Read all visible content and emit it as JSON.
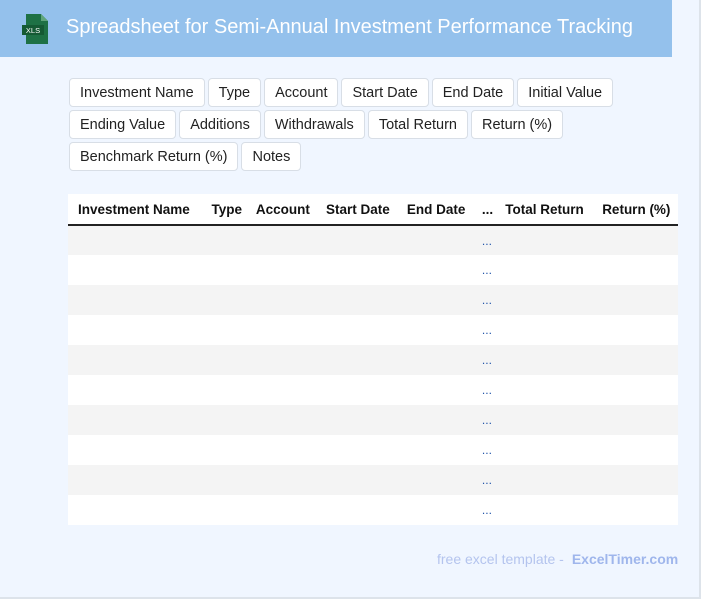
{
  "header": {
    "title": "Spreadsheet for Semi-Annual Investment Performance Tracking",
    "icon": "xls-file-icon",
    "icon_text": "XLS"
  },
  "fields": [
    "Investment Name",
    "Type",
    "Account",
    "Start Date",
    "End Date",
    "Initial Value",
    "Ending Value",
    "Additions",
    "Withdrawals",
    "Total Return",
    "Return (%)",
    "Benchmark Return (%)",
    "Notes"
  ],
  "table": {
    "columns": [
      "Investment Name",
      "Type",
      "Account",
      "Start Date",
      "End Date",
      "...",
      "Total Return",
      "Return (%)"
    ],
    "rows": [
      [
        "",
        "",
        "",
        "",
        "",
        "...",
        "",
        ""
      ],
      [
        "",
        "",
        "",
        "",
        "",
        "...",
        "",
        ""
      ],
      [
        "",
        "",
        "",
        "",
        "",
        "...",
        "",
        ""
      ],
      [
        "",
        "",
        "",
        "",
        "",
        "...",
        "",
        ""
      ],
      [
        "",
        "",
        "",
        "",
        "",
        "...",
        "",
        ""
      ],
      [
        "",
        "",
        "",
        "",
        "",
        "...",
        "",
        ""
      ],
      [
        "",
        "",
        "",
        "",
        "",
        "...",
        "",
        ""
      ],
      [
        "",
        "",
        "",
        "",
        "",
        "...",
        "",
        ""
      ],
      [
        "",
        "",
        "",
        "",
        "",
        "...",
        "",
        ""
      ],
      [
        "",
        "",
        "",
        "",
        "",
        "...",
        "",
        ""
      ]
    ]
  },
  "footer": {
    "text": "free excel template -",
    "brand": "ExcelTimer.com"
  },
  "colors": {
    "header": "#94c1ec",
    "background": "#f0f6ff",
    "icon": "#1e7145"
  }
}
